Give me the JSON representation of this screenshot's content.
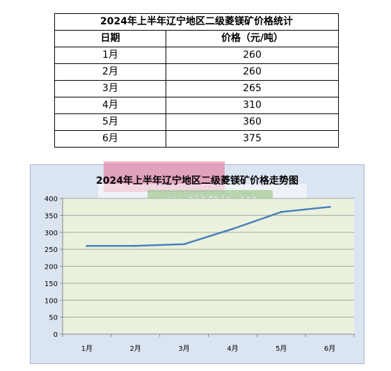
{
  "table": {
    "title": "2024年上半年辽宁地区二级菱镁矿价格统计",
    "headers": [
      "日期",
      "价格（元/吨）"
    ],
    "rows": [
      [
        "1月",
        "260"
      ],
      [
        "2月",
        "260"
      ],
      [
        "3月",
        "265"
      ],
      [
        "4月",
        "310"
      ],
      [
        "5月",
        "360"
      ],
      [
        "6月",
        "375"
      ]
    ]
  },
  "watermark": {
    "text": "www.cindmin.com"
  },
  "chart_data": {
    "type": "line",
    "title": "2024年上半年辽宁地区二级菱镁矿价格走势图",
    "categories": [
      "1月",
      "2月",
      "3月",
      "4月",
      "5月",
      "6月"
    ],
    "values": [
      260,
      260,
      265,
      310,
      360,
      375
    ],
    "ylim": [
      0,
      400
    ],
    "yticks": [
      0,
      50,
      100,
      150,
      200,
      250,
      300,
      350,
      400
    ],
    "grid": true,
    "legend": "none",
    "colors": {
      "line": "#4a7ebb",
      "plot_bg": "#eaf1dd",
      "chart_bg": "#dbe4f1",
      "grid": "#a6a6a6"
    }
  }
}
